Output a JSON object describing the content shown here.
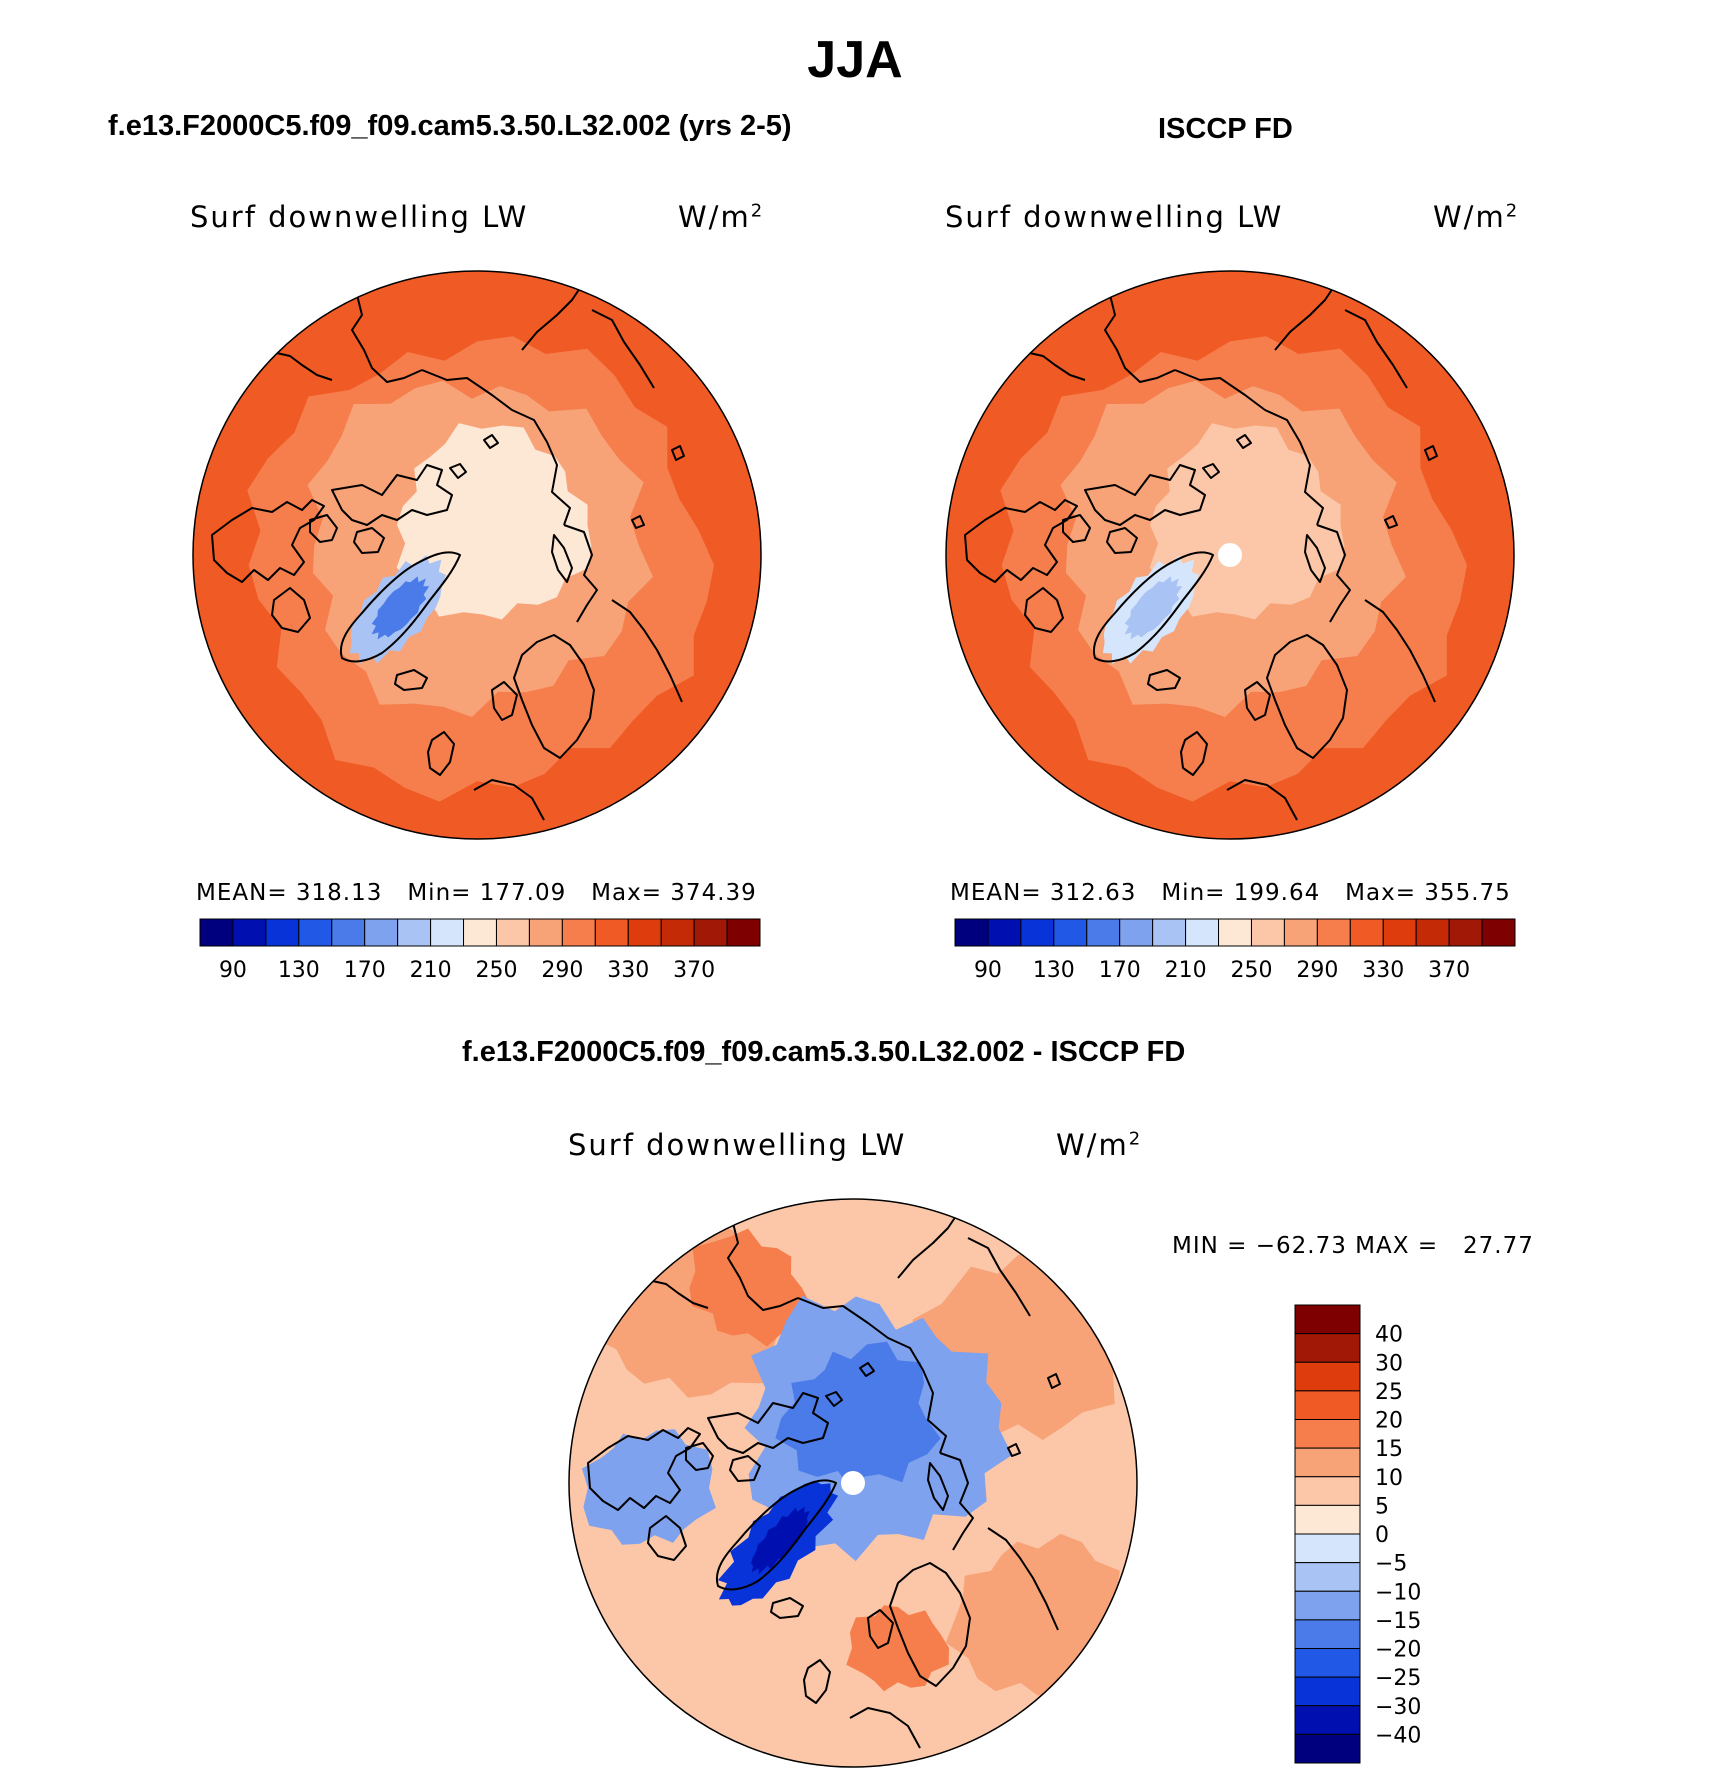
{
  "title": "JJA",
  "colors": {
    "seq_palette": [
      "#00007f",
      "#0010b0",
      "#0733d8",
      "#2258e6",
      "#4a7be8",
      "#7fa2ee",
      "#a8c3f4",
      "#d5e5fb",
      "#fde7d5",
      "#fbc7a8",
      "#f7a377",
      "#f57e4c",
      "#f05a25",
      "#de3c0c",
      "#c42a06",
      "#a21807",
      "#7f0000"
    ],
    "diff_palette": [
      "#00007f",
      "#0010b0",
      "#0733d8",
      "#2258e6",
      "#4a7be8",
      "#7fa2ee",
      "#a8c3f4",
      "#d5e5fb",
      "#fde7d5",
      "#fbc7a8",
      "#f7a377",
      "#f57e4c",
      "#f05a25",
      "#de3c0c",
      "#a21807",
      "#7f0000"
    ]
  },
  "panels": [
    {
      "title": "f.e13.F2000C5.f09_f09.cam5.3.50.L32.002 (yrs 2-5)",
      "variable": "Surf downwelling LW",
      "units": "W/m",
      "units_sup": "2",
      "stats": {
        "mean_label": "MEAN=",
        "mean": "318.13",
        "min_label": "Min=",
        "min": "177.09",
        "max_label": "Max=",
        "max": "374.39"
      },
      "colorbar_labels": [
        "90",
        "130",
        "170",
        "210",
        "250",
        "290",
        "330",
        "370"
      ],
      "fill_levels": {
        "outer": 12,
        "mid": 11,
        "inner": 10,
        "arctic": 8,
        "greenland_edge": 6,
        "greenland_core": 4
      },
      "polar_hole": false
    },
    {
      "title": "ISCCP FD",
      "variable": "Surf downwelling LW",
      "units": "W/m",
      "units_sup": "2",
      "stats": {
        "mean_label": "MEAN=",
        "mean": "312.63",
        "min_label": "Min=",
        "min": "199.64",
        "max_label": "Max=",
        "max": "355.75"
      },
      "colorbar_labels": [
        "90",
        "130",
        "170",
        "210",
        "250",
        "290",
        "330",
        "370"
      ],
      "fill_levels": {
        "outer": 12,
        "mid": 11,
        "inner": 10,
        "arctic": 9,
        "greenland_edge": 7,
        "greenland_core": 6
      },
      "polar_hole": true
    }
  ],
  "diff": {
    "title": "f.e13.F2000C5.f09_f09.cam5.3.50.L32.002 - ISCCP FD",
    "variable": "Surf downwelling LW",
    "units": "W/m",
    "units_sup": "2",
    "stats": {
      "min_label": "MIN =",
      "min": "−62.73",
      "max_label": "MAX =",
      "max": "27.77"
    },
    "colorbar_labels": [
      "40",
      "30",
      "25",
      "20",
      "15",
      "10",
      "5",
      "0",
      "−5",
      "−10",
      "−15",
      "−20",
      "−25",
      "−30",
      "−40"
    ],
    "fill_levels": {
      "background": 9,
      "warm": 10,
      "hot": 11,
      "arctic": 5,
      "arctic_core": 4,
      "greenland": 2,
      "greenland_core": 1,
      "canada": 5
    },
    "polar_hole": true
  }
}
